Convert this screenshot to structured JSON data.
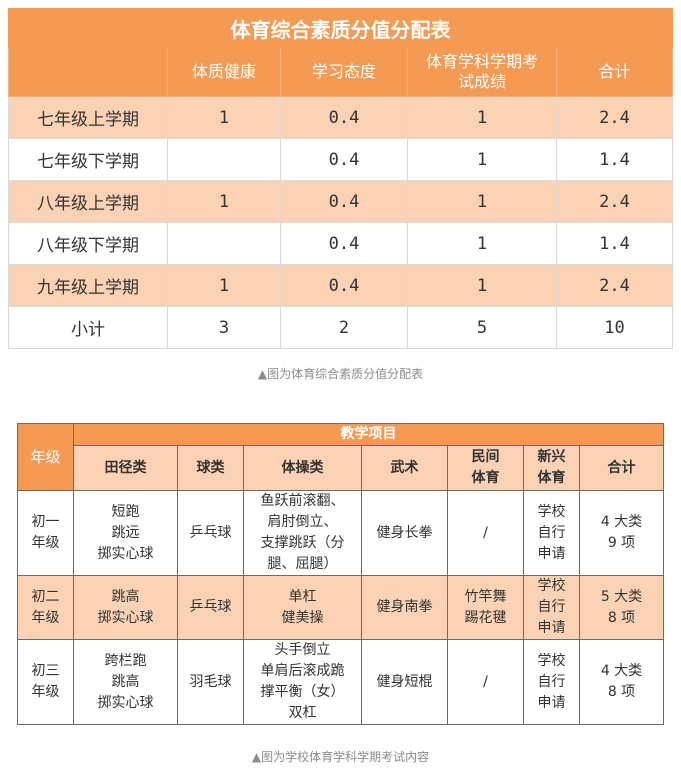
{
  "table1": {
    "title": "体育综合素质分值分配表",
    "headers": [
      "",
      "体质健康",
      "学习态度",
      "体育学科学期考试成绩",
      "合计"
    ],
    "rows": [
      {
        "label": "七年级上学期",
        "values": [
          "1",
          "0.4",
          "1",
          "2.4"
        ]
      },
      {
        "label": "七年级下学期",
        "values": [
          "",
          "0.4",
          "1",
          "1.4"
        ]
      },
      {
        "label": "八年级上学期",
        "values": [
          "1",
          "0.4",
          "1",
          "2.4"
        ]
      },
      {
        "label": "八年级下学期",
        "values": [
          "",
          "0.4",
          "1",
          "1.4"
        ]
      },
      {
        "label": "九年级上学期",
        "values": [
          "1",
          "0.4",
          "1",
          "2.4"
        ]
      },
      {
        "label": "小计",
        "values": [
          "3",
          "2",
          "5",
          "10"
        ]
      }
    ],
    "header_split": {
      "line1": "体育学科学期考",
      "line2": "试成绩"
    },
    "caption": "▲图为体育综合素质分值分配表"
  },
  "table2": {
    "grade_header": "年级",
    "group_header": "教学项目",
    "columns": [
      "田径类",
      "球类",
      "体操类",
      "武术",
      "民间体育",
      "新兴体育",
      "合计"
    ],
    "column_lines": {
      "folk": [
        "民间",
        "体育"
      ],
      "emerging": [
        "新兴",
        "体育"
      ]
    },
    "rows": [
      {
        "grade": [
          "初一",
          "年级"
        ],
        "track": [
          "短跑",
          "跳远",
          "掷实心球"
        ],
        "ball": [
          "乒乓球"
        ],
        "gym": [
          "鱼跃前滚翻、",
          "肩肘倒立、",
          "支撑跳跃（分",
          "腿、屈腿）"
        ],
        "wushu": [
          "健身长拳"
        ],
        "folk": [
          "/"
        ],
        "emerging": [
          "学校",
          "自行",
          "申请"
        ],
        "total": [
          "4 大类",
          "9 项"
        ]
      },
      {
        "grade": [
          "初二",
          "年级"
        ],
        "track": [
          "跳高",
          "掷实心球"
        ],
        "ball": [
          "乒乓球"
        ],
        "gym": [
          "单杠",
          "健美操"
        ],
        "wushu": [
          "健身南拳"
        ],
        "folk": [
          "竹竿舞",
          "踢花毽"
        ],
        "emerging": [
          "学校",
          "自行",
          "申请"
        ],
        "total": [
          "5 大类",
          "8 项"
        ]
      },
      {
        "grade": [
          "初三",
          "年级"
        ],
        "track": [
          "跨栏跑",
          "跳高",
          "掷实心球"
        ],
        "ball": [
          "羽毛球"
        ],
        "gym": [
          "头手倒立",
          "单肩后滚成跪",
          "撑平衡（女）",
          "双杠"
        ],
        "wushu": [
          "健身短棍"
        ],
        "folk": [
          "/"
        ],
        "emerging": [
          "学校",
          "自行",
          "申请"
        ],
        "total": [
          "4 大类",
          "8 项"
        ]
      }
    ],
    "caption": "▲图为学校体育学科学期考试内容"
  },
  "colors": {
    "accent": "#f59a52",
    "accent_light": "#fbd3b4"
  }
}
